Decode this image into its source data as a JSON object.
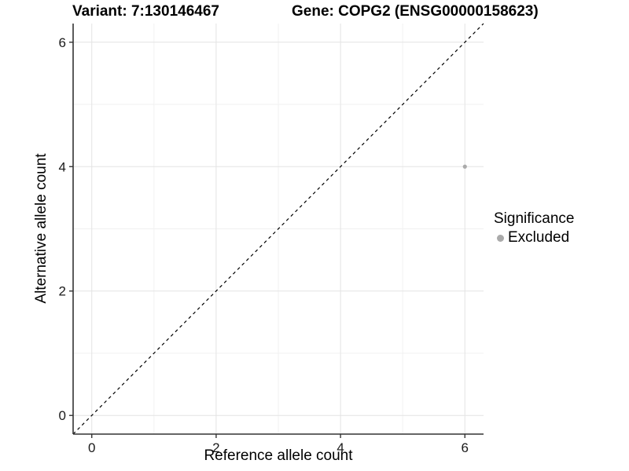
{
  "chart_data": {
    "type": "scatter",
    "titles": {
      "left": "Variant: 7:130146467",
      "right": "Gene: COPG2 (ENSG00000158623)"
    },
    "xlabel": "Reference allele count",
    "ylabel": "Alternative allele count",
    "xlim": [
      -0.3,
      6.3
    ],
    "ylim": [
      -0.3,
      6.3
    ],
    "xticks": [
      0,
      2,
      4,
      6
    ],
    "yticks": [
      0,
      2,
      4,
      6
    ],
    "xticks_minor": [
      1,
      3,
      5
    ],
    "yticks_minor": [
      1,
      3,
      5
    ],
    "grid": "major and minor, light gray on white panel",
    "series": [
      {
        "name": "Excluded",
        "marker": "circle",
        "color": "#aaaaaa",
        "points": [
          [
            6,
            4
          ]
        ]
      }
    ],
    "reference_line": {
      "label": "identity",
      "slope": 1,
      "intercept": 0,
      "style": "dashed",
      "color": "#000000"
    },
    "legend": {
      "title": "Significance",
      "position": "right",
      "entries": [
        {
          "label": "Excluded",
          "color": "#aaaaaa",
          "marker": "circle"
        }
      ]
    },
    "colors": {
      "background": "#ffffff",
      "grid_major": "#e3e3e3",
      "grid_minor": "#f1f1f1",
      "axis": "#333333",
      "tick_text": "#1a1a1a",
      "title_text": "#000000"
    }
  }
}
